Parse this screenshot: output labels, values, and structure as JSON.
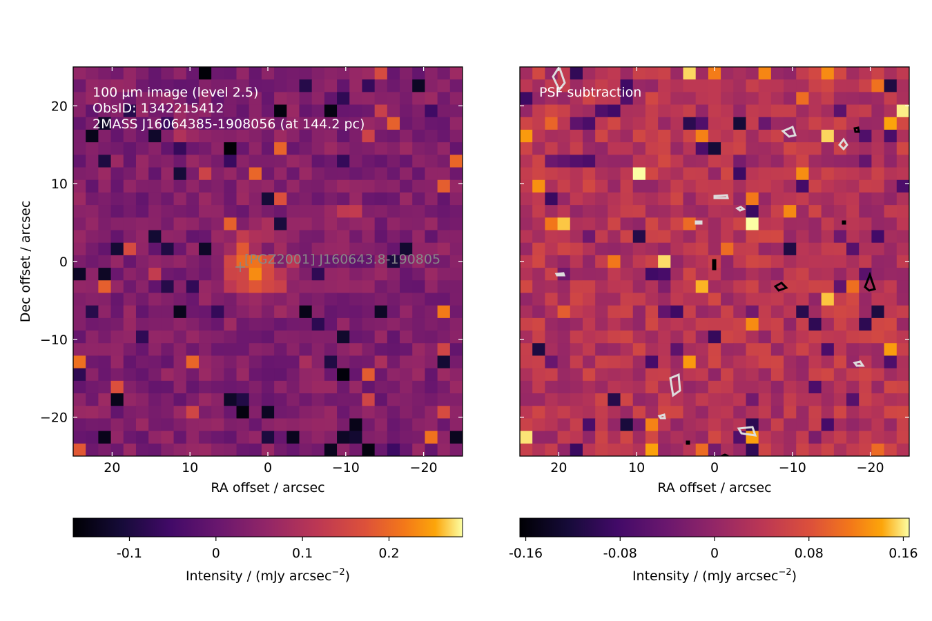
{
  "chart_data": [
    {
      "type": "heatmap",
      "annotations": [
        "100 µm image (level 2.5)",
        "ObsID: 1342215412",
        "2MASS J16064385-1908056 (at 144.2 pc)"
      ],
      "source_label": "[PGZ2001] J160643.8-190805",
      "xlabel": "RA offset / arcsec",
      "ylabel": "Dec offset / arcsec",
      "xlim": [
        25,
        -25
      ],
      "ylim": [
        -25,
        25
      ],
      "xticks": [
        20,
        10,
        0,
        -10,
        -20
      ],
      "xtick_labels": [
        "20",
        "10",
        "0",
        "−10",
        "−20"
      ],
      "yticks": [
        20,
        10,
        0,
        -10,
        -20
      ],
      "ytick_labels": [
        "20",
        "10",
        "0",
        "−10",
        "−20"
      ],
      "grid": false,
      "colormap": "inferno",
      "grid_size": [
        31,
        31
      ],
      "colorbar": {
        "label": "Intensity / (mJy arcsec⁻²)",
        "range": [
          -0.165,
          0.285
        ],
        "ticks": [
          -0.1,
          0,
          0.1,
          0.2
        ],
        "tick_labels": [
          "-0.1",
          "0",
          "0.1",
          "0.2"
        ]
      }
    },
    {
      "type": "heatmap",
      "annotations": [
        "PSF subtraction"
      ],
      "xlabel": "RA offset / arcsec",
      "xlim": [
        25,
        -25
      ],
      "ylim": [
        -25,
        25
      ],
      "xticks": [
        20,
        10,
        0,
        -10,
        -20
      ],
      "xtick_labels": [
        "20",
        "10",
        "0",
        "−10",
        "−20"
      ],
      "grid": false,
      "colormap": "inferno",
      "grid_size": [
        31,
        31
      ],
      "contours": true,
      "colorbar": {
        "label": "Intensity / (mJy arcsec⁻²)",
        "range": [
          -0.165,
          0.165
        ],
        "ticks": [
          -0.16,
          -0.08,
          0,
          0.08,
          0.16
        ],
        "tick_labels": [
          "-0.16",
          "-0.08",
          "0",
          "0.08",
          "0.16"
        ]
      }
    }
  ]
}
